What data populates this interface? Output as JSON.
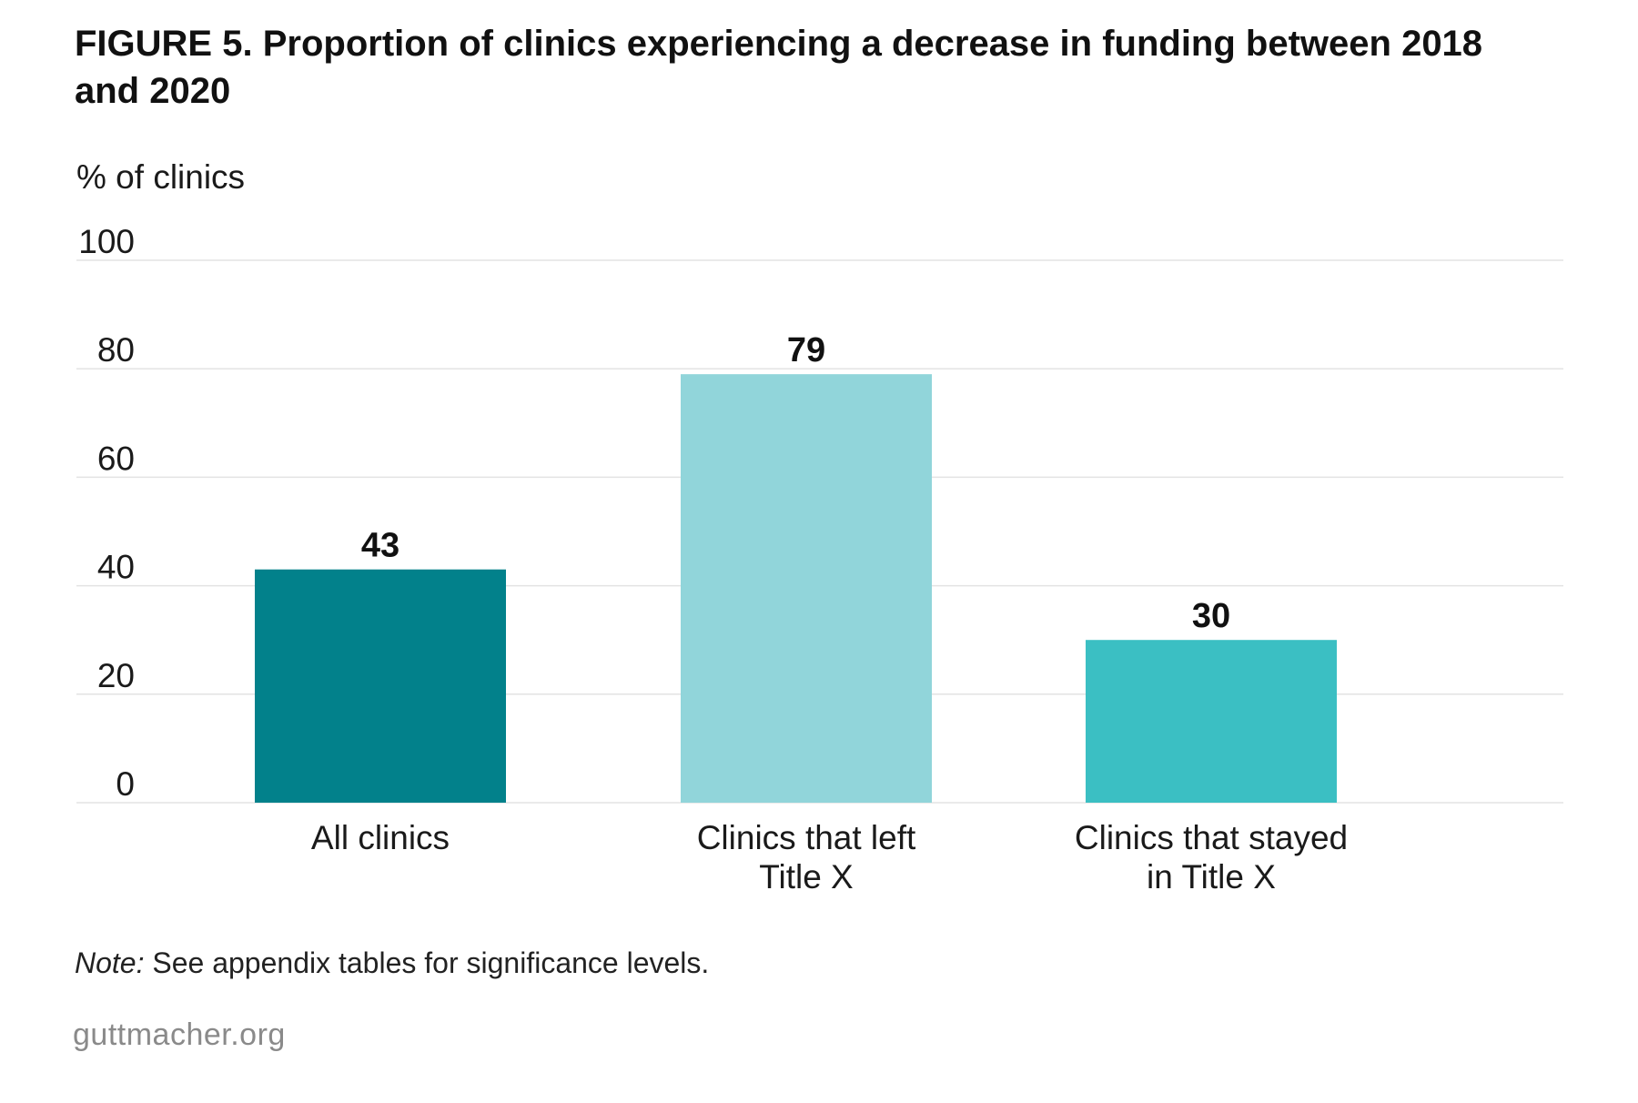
{
  "title": "FIGURE 5. Proportion of clinics experiencing a decrease in funding between 2018 and 2020",
  "note": {
    "label": "Note:",
    "text": "See appendix tables for significance levels."
  },
  "source": "guttmacher.org",
  "chart_data": {
    "type": "bar",
    "title": "FIGURE 5. Proportion of clinics experiencing a decrease in funding between 2018 and 2020",
    "ylabel": "% of clinics",
    "xlabel": "",
    "ylim": [
      0,
      100
    ],
    "yticks": [
      0,
      20,
      40,
      60,
      80,
      100
    ],
    "grid": true,
    "categories": [
      [
        "All clinics"
      ],
      [
        "Clinics that left",
        "Title X"
      ],
      [
        "Clinics that stayed",
        "in Title X"
      ]
    ],
    "values": [
      43,
      79,
      30
    ],
    "data_labels": [
      "43",
      "79",
      "30"
    ],
    "colors": [
      "#02818b",
      "#91d5da",
      "#3bbfc3"
    ],
    "gridline_color": "#e3e3e3"
  }
}
